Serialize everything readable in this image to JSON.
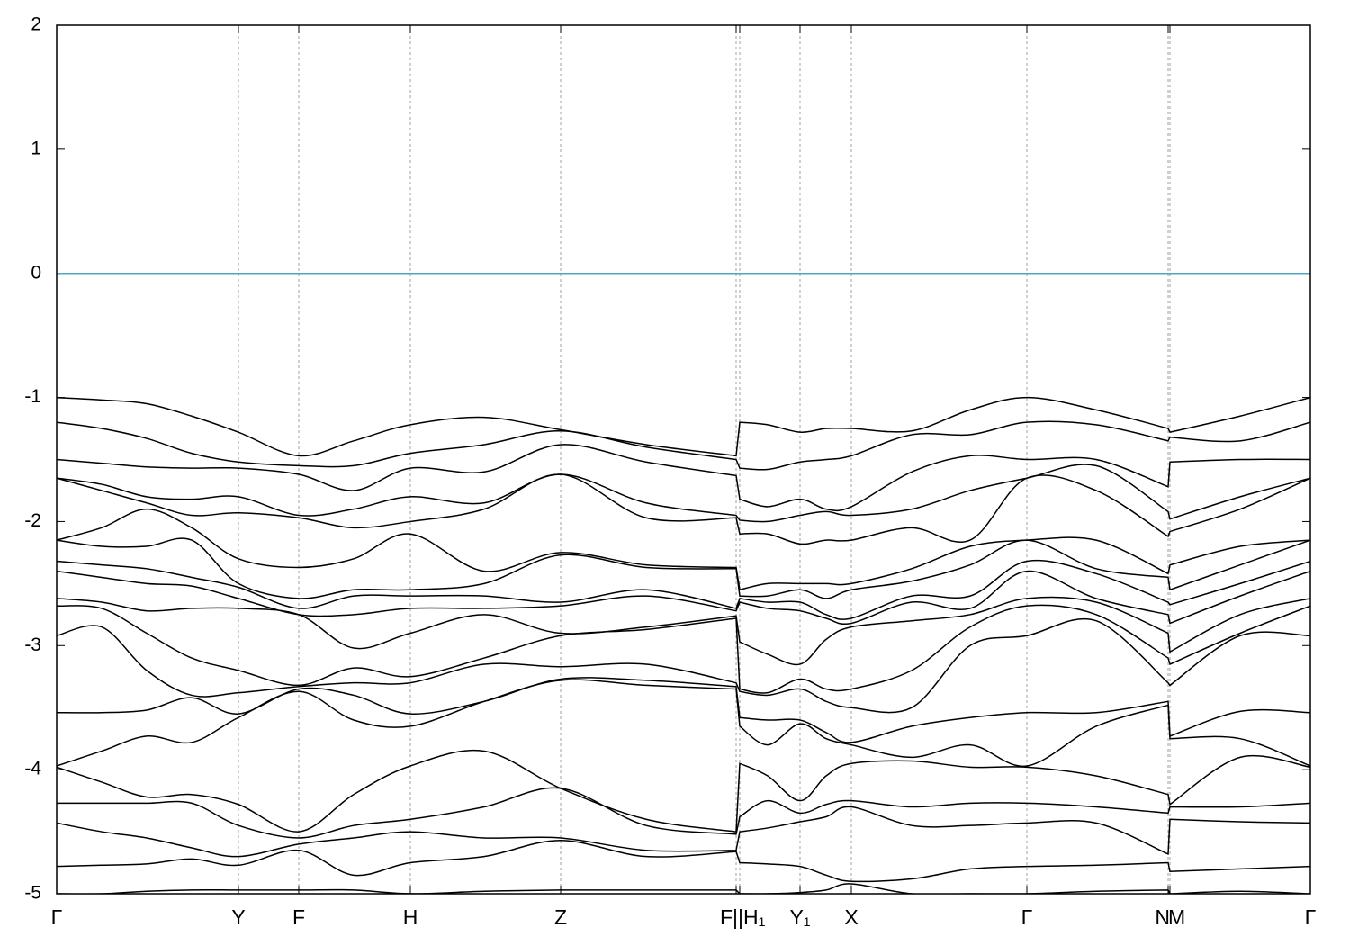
{
  "chart_data": {
    "type": "line",
    "xlim": [
      0,
      1393
    ],
    "ylim": [
      -5,
      2
    ],
    "yticks": [
      -5,
      -4,
      -3,
      -2,
      -1,
      0,
      1,
      2
    ],
    "xticks": [
      {
        "value": 0,
        "label": "Γ"
      },
      {
        "value": 202,
        "label": "Y"
      },
      {
        "value": 269,
        "label": "F"
      },
      {
        "value": 393,
        "label": "H"
      },
      {
        "value": 560,
        "label": "Z"
      },
      {
        "value": 755,
        "label": "F|"
      },
      {
        "value": 759,
        "label": "|H₁"
      },
      {
        "value": 826,
        "label": "Y₁"
      },
      {
        "value": 883,
        "label": "X"
      },
      {
        "value": 1078,
        "label": "Γ"
      },
      {
        "value": 1235,
        "label": "N"
      },
      {
        "value": 1237,
        "label": "M"
      },
      {
        "value": 1393,
        "label": "Γ"
      }
    ],
    "grid": true,
    "line_color": "#000000",
    "fermi_level": 0,
    "fermi_color": "#4fa6c3",
    "x": [
      0,
      50,
      100,
      150,
      202,
      269,
      330,
      393,
      475,
      560,
      655,
      755,
      759,
      790,
      826,
      855,
      883,
      950,
      1015,
      1078,
      1155,
      1235,
      1237,
      1315,
      1393
    ],
    "series": [
      {
        "values": [
          -1.0,
          -1.02,
          -1.05,
          -1.15,
          -1.28,
          -1.47,
          -1.35,
          -1.22,
          -1.16,
          -1.26,
          -1.38,
          -1.47,
          -1.2,
          -1.22,
          -1.28,
          -1.25,
          -1.25,
          -1.27,
          -1.1,
          -1.0,
          -1.1,
          -1.25,
          -1.28,
          -1.15,
          -1.0
        ]
      },
      {
        "values": [
          -1.2,
          -1.25,
          -1.33,
          -1.45,
          -1.52,
          -1.55,
          -1.55,
          -1.45,
          -1.38,
          -1.27,
          -1.4,
          -1.5,
          -1.57,
          -1.58,
          -1.52,
          -1.5,
          -1.47,
          -1.3,
          -1.3,
          -1.2,
          -1.22,
          -1.35,
          -1.32,
          -1.35,
          -1.2
        ]
      },
      {
        "values": [
          -1.5,
          -1.53,
          -1.56,
          -1.57,
          -1.57,
          -1.62,
          -1.75,
          -1.57,
          -1.6,
          -1.38,
          -1.52,
          -1.63,
          -1.82,
          -1.88,
          -1.82,
          -1.9,
          -1.88,
          -1.6,
          -1.47,
          -1.5,
          -1.5,
          -1.72,
          -1.52,
          -1.5,
          -1.5
        ]
      },
      {
        "values": [
          -1.65,
          -1.7,
          -1.8,
          -1.82,
          -1.8,
          -1.95,
          -1.9,
          -1.8,
          -1.85,
          -1.62,
          -1.85,
          -1.95,
          -1.99,
          -2.0,
          -1.95,
          -1.92,
          -1.95,
          -1.9,
          -1.75,
          -1.65,
          -1.55,
          -1.92,
          -1.98,
          -1.8,
          -1.65
        ]
      },
      {
        "values": [
          -1.65,
          -1.75,
          -1.85,
          -1.95,
          -1.93,
          -1.97,
          -2.05,
          -2.0,
          -1.9,
          -1.62,
          -1.97,
          -1.97,
          -2.1,
          -2.1,
          -2.18,
          -2.15,
          -2.15,
          -2.05,
          -2.15,
          -1.65,
          -1.75,
          -2.12,
          -2.08,
          -1.9,
          -1.65
        ]
      },
      {
        "values": [
          -2.15,
          -2.05,
          -1.9,
          -2.05,
          -2.3,
          -2.37,
          -2.3,
          -2.1,
          -2.4,
          -2.25,
          -2.35,
          -2.37,
          -2.55,
          -2.5,
          -2.5,
          -2.5,
          -2.5,
          -2.38,
          -2.2,
          -2.15,
          -2.15,
          -2.42,
          -2.35,
          -2.2,
          -2.15
        ]
      },
      {
        "values": [
          -2.15,
          -2.2,
          -2.2,
          -2.15,
          -2.5,
          -2.62,
          -2.55,
          -2.55,
          -2.5,
          -2.27,
          -2.37,
          -2.38,
          -2.6,
          -2.6,
          -2.55,
          -2.62,
          -2.55,
          -2.48,
          -2.35,
          -2.15,
          -2.38,
          -2.45,
          -2.55,
          -2.35,
          -2.15
        ]
      },
      {
        "values": [
          -2.32,
          -2.35,
          -2.38,
          -2.45,
          -2.53,
          -2.7,
          -2.6,
          -2.6,
          -2.6,
          -2.65,
          -2.55,
          -2.7,
          -2.62,
          -2.65,
          -2.65,
          -2.75,
          -2.78,
          -2.6,
          -2.6,
          -2.32,
          -2.42,
          -2.65,
          -2.67,
          -2.5,
          -2.32
        ]
      },
      {
        "values": [
          -2.4,
          -2.45,
          -2.5,
          -2.52,
          -2.62,
          -2.75,
          -2.75,
          -2.7,
          -2.7,
          -2.68,
          -2.6,
          -2.72,
          -2.65,
          -2.7,
          -2.72,
          -2.78,
          -2.82,
          -2.65,
          -2.7,
          -2.4,
          -2.62,
          -2.75,
          -2.82,
          -2.6,
          -2.4
        ]
      },
      {
        "values": [
          -2.62,
          -2.65,
          -2.72,
          -2.7,
          -2.7,
          -2.75,
          -3.02,
          -2.9,
          -2.75,
          -2.9,
          -2.85,
          -2.76,
          -2.97,
          -3.07,
          -3.15,
          -2.95,
          -2.85,
          -2.8,
          -2.75,
          -2.62,
          -2.65,
          -2.9,
          -3.05,
          -2.75,
          -2.62
        ]
      },
      {
        "values": [
          -2.68,
          -2.7,
          -2.9,
          -3.1,
          -3.2,
          -3.32,
          -3.18,
          -3.25,
          -3.1,
          -2.92,
          -2.87,
          -2.78,
          -3.35,
          -3.38,
          -3.27,
          -3.35,
          -3.35,
          -3.2,
          -2.85,
          -2.68,
          -2.75,
          -3.1,
          -3.15,
          -2.9,
          -2.68
        ]
      },
      {
        "values": [
          -2.92,
          -2.85,
          -3.2,
          -3.4,
          -3.38,
          -3.33,
          -3.3,
          -3.3,
          -3.15,
          -3.17,
          -3.15,
          -3.3,
          -3.37,
          -3.4,
          -3.35,
          -3.45,
          -3.5,
          -3.5,
          -3.0,
          -2.92,
          -2.8,
          -3.3,
          -3.32,
          -2.92,
          -2.92
        ]
      },
      {
        "values": [
          -3.54,
          -3.54,
          -3.52,
          -3.42,
          -3.55,
          -3.35,
          -3.4,
          -3.55,
          -3.45,
          -3.27,
          -3.28,
          -3.33,
          -3.58,
          -3.6,
          -3.6,
          -3.7,
          -3.78,
          -3.65,
          -3.58,
          -3.54,
          -3.54,
          -3.45,
          -3.73,
          -3.53,
          -3.54
        ]
      },
      {
        "values": [
          -3.97,
          -3.85,
          -3.73,
          -3.78,
          -3.58,
          -3.37,
          -3.6,
          -3.65,
          -3.45,
          -3.28,
          -3.32,
          -3.35,
          -3.65,
          -3.8,
          -3.63,
          -3.75,
          -3.8,
          -3.9,
          -3.8,
          -3.97,
          -3.65,
          -3.48,
          -3.75,
          -3.75,
          -3.97
        ]
      },
      {
        "values": [
          -3.98,
          -4.1,
          -4.22,
          -4.2,
          -4.28,
          -4.5,
          -4.2,
          -3.97,
          -3.85,
          -4.15,
          -4.4,
          -4.5,
          -3.95,
          -4.05,
          -4.25,
          -4.05,
          -3.95,
          -3.93,
          -3.98,
          -3.98,
          -4.05,
          -4.2,
          -4.28,
          -3.9,
          -3.98
        ]
      },
      {
        "values": [
          -4.27,
          -4.27,
          -4.27,
          -4.27,
          -4.45,
          -4.55,
          -4.45,
          -4.4,
          -4.3,
          -4.15,
          -4.45,
          -4.52,
          -4.38,
          -4.25,
          -4.35,
          -4.28,
          -4.25,
          -4.3,
          -4.27,
          -4.27,
          -4.3,
          -4.35,
          -4.3,
          -4.3,
          -4.27
        ]
      },
      {
        "values": [
          -4.43,
          -4.5,
          -4.55,
          -4.63,
          -4.7,
          -4.6,
          -4.55,
          -4.5,
          -4.55,
          -4.55,
          -4.65,
          -4.65,
          -4.5,
          -4.47,
          -4.42,
          -4.38,
          -4.3,
          -4.45,
          -4.45,
          -4.43,
          -4.43,
          -4.68,
          -4.4,
          -4.42,
          -4.43
        ]
      },
      {
        "values": [
          -4.78,
          -4.77,
          -4.76,
          -4.72,
          -4.77,
          -4.65,
          -4.85,
          -4.75,
          -4.7,
          -4.57,
          -4.7,
          -4.66,
          -4.75,
          -4.76,
          -4.78,
          -4.85,
          -4.9,
          -4.88,
          -4.8,
          -4.78,
          -4.77,
          -4.75,
          -4.82,
          -4.8,
          -4.78
        ]
      },
      {
        "values": [
          -5.0,
          -5.0,
          -4.98,
          -4.97,
          -4.97,
          -4.97,
          -4.97,
          -5.0,
          -4.98,
          -4.97,
          -4.97,
          -4.97,
          -5.0,
          -5.0,
          -4.99,
          -4.97,
          -4.92,
          -5.0,
          -5.0,
          -5.0,
          -4.98,
          -4.97,
          -5.0,
          -4.98,
          -5.0
        ]
      }
    ]
  }
}
